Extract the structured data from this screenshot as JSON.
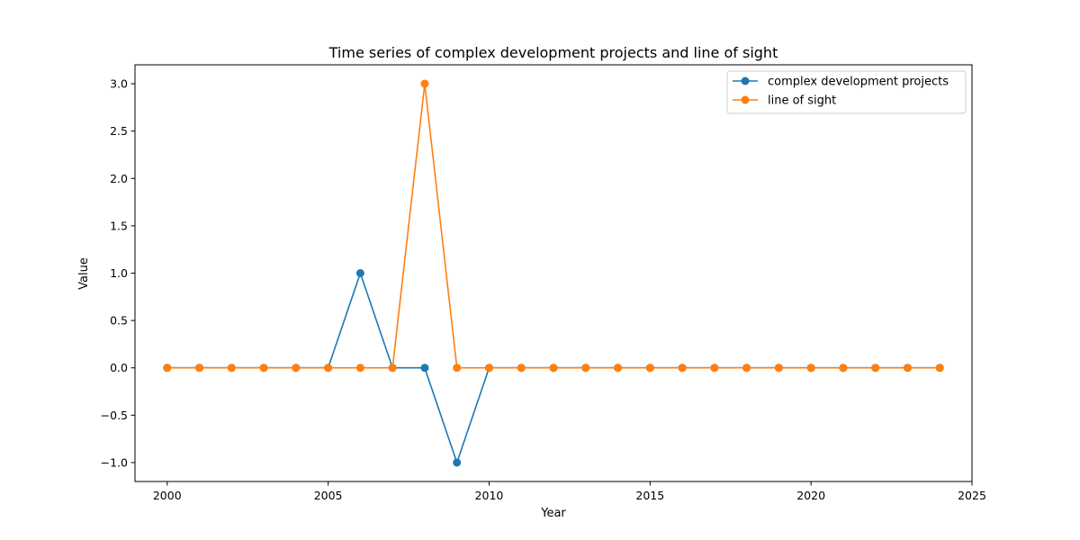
{
  "chart_data": {
    "type": "line",
    "title": "Time series of complex development projects and line of sight",
    "xlabel": "Year",
    "ylabel": "Value",
    "xlim": [
      1999,
      2025
    ],
    "ylim": [
      -1.2,
      3.2
    ],
    "xticks": [
      2000,
      2005,
      2010,
      2015,
      2020,
      2025
    ],
    "xtick_labels": [
      "2000",
      "2005",
      "2010",
      "2015",
      "2020",
      "2025"
    ],
    "yticks": [
      -1.0,
      -0.5,
      0.0,
      0.5,
      1.0,
      1.5,
      2.0,
      2.5,
      3.0
    ],
    "ytick_labels": [
      "−1.0",
      "−0.5",
      "0.0",
      "0.5",
      "1.0",
      "1.5",
      "2.0",
      "2.5",
      "3.0"
    ],
    "x": [
      2000,
      2001,
      2002,
      2003,
      2004,
      2005,
      2006,
      2007,
      2008,
      2009,
      2010,
      2011,
      2012,
      2013,
      2014,
      2015,
      2016,
      2017,
      2018,
      2019,
      2020,
      2021,
      2022,
      2023,
      2024
    ],
    "series": [
      {
        "name": "complex development projects",
        "color": "#1f77b4",
        "values": [
          0,
          0,
          0,
          0,
          0,
          0,
          1,
          0,
          0,
          -1,
          0,
          0,
          0,
          0,
          0,
          0,
          0,
          0,
          0,
          0,
          0,
          0,
          0,
          0,
          0
        ]
      },
      {
        "name": "line of sight",
        "color": "#ff7f0e",
        "values": [
          0,
          0,
          0,
          0,
          0,
          0,
          0,
          0,
          3,
          0,
          0,
          0,
          0,
          0,
          0,
          0,
          0,
          0,
          0,
          0,
          0,
          0,
          0,
          0,
          0
        ]
      }
    ],
    "grid": false,
    "legend_position": "top-right"
  }
}
